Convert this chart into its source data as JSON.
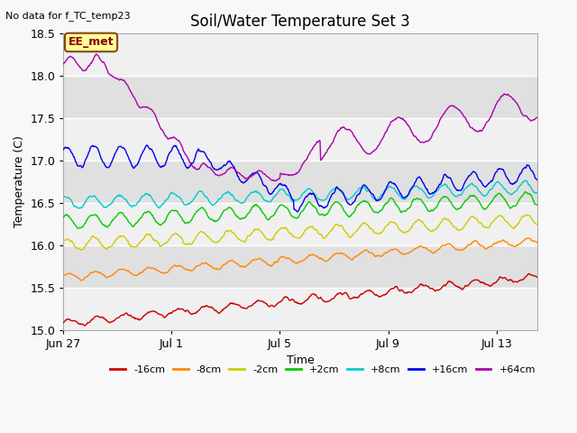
{
  "title": "Soil/Water Temperature Set 3",
  "suptitle": "No data for f_TC_temp23",
  "xlabel": "Time",
  "ylabel": "Temperature (C)",
  "ylim": [
    15.0,
    18.5
  ],
  "xlim_days": [
    0,
    17.5
  ],
  "annotation": "EE_met",
  "series": [
    {
      "label": "-16cm",
      "color": "#cc0000"
    },
    {
      "label": "-8cm",
      "color": "#ff8800"
    },
    {
      "label": "-2cm",
      "color": "#cccc00"
    },
    {
      "label": "+2cm",
      "color": "#00cc00"
    },
    {
      "label": "+8cm",
      "color": "#00cccc"
    },
    {
      "label": "+16cm",
      "color": "#0000ee"
    },
    {
      "label": "+64cm",
      "color": "#aa00aa"
    }
  ],
  "xtick_positions": [
    0,
    4,
    8,
    12,
    16
  ],
  "xtick_labels": [
    "Jun 27",
    "Jul 1",
    "Jul 5",
    "Jul 9",
    "Jul 13"
  ],
  "ytick_positions": [
    15.0,
    15.5,
    16.0,
    16.5,
    17.0,
    17.5,
    18.0,
    18.5
  ],
  "title_fontsize": 12,
  "label_fontsize": 9,
  "tick_fontsize": 9,
  "band_colors": [
    "#f0f0f0",
    "#e0e0e0"
  ]
}
